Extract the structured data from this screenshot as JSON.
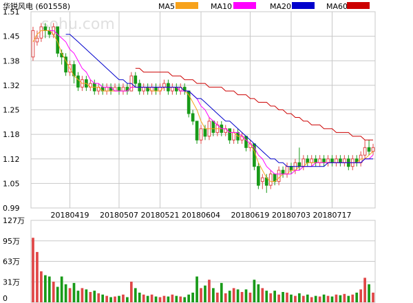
{
  "chart_data": {
    "type": "candlestick",
    "title": "华锐风电 (601558)",
    "watermark": "sohu.com",
    "legend": [
      {
        "name": "MA5",
        "color": "#f7a21b"
      },
      {
        "name": "MA10",
        "color": "#ff00ff"
      },
      {
        "name": "MA20",
        "color": "#0000cc"
      },
      {
        "name": "MA60",
        "color": "#cc0000"
      }
    ],
    "colors": {
      "up": "#e04646",
      "down": "#189a18",
      "grid": "#c8c8c8"
    },
    "price_axis": {
      "ticks": [
        "1.51",
        "1.45",
        "1.38",
        "1.32",
        "1.25",
        "1.18",
        "1.12",
        "1.05",
        "0.99"
      ],
      "ylim": [
        0.99,
        1.51
      ]
    },
    "volume_axis": {
      "ticks": [
        "127万",
        "95万",
        "63万",
        "31万",
        "0"
      ],
      "ylim": [
        0,
        127
      ]
    },
    "date_labels": [
      "20180419",
      "20180507",
      "20180521",
      "20180604",
      "20180619",
      "20180703",
      "20180717"
    ],
    "candles": [
      [
        1.39,
        1.46,
        1.47,
        1.38
      ],
      [
        1.43,
        1.44,
        1.46,
        1.42
      ],
      [
        1.44,
        1.47,
        1.48,
        1.43
      ],
      [
        1.47,
        1.46,
        1.48,
        1.44
      ],
      [
        1.46,
        1.45,
        1.47,
        1.44
      ],
      [
        1.45,
        1.47,
        1.48,
        1.44
      ],
      [
        1.47,
        1.4,
        1.47,
        1.39
      ],
      [
        1.4,
        1.39,
        1.41,
        1.37
      ],
      [
        1.39,
        1.35,
        1.4,
        1.34
      ],
      [
        1.35,
        1.37,
        1.38,
        1.34
      ],
      [
        1.37,
        1.34,
        1.38,
        1.32
      ],
      [
        1.34,
        1.31,
        1.35,
        1.3
      ],
      [
        1.31,
        1.33,
        1.34,
        1.3
      ],
      [
        1.33,
        1.31,
        1.34,
        1.3
      ],
      [
        1.31,
        1.32,
        1.33,
        1.3
      ],
      [
        1.32,
        1.3,
        1.33,
        1.29
      ],
      [
        1.3,
        1.31,
        1.32,
        1.29
      ],
      [
        1.31,
        1.3,
        1.32,
        1.29
      ],
      [
        1.3,
        1.31,
        1.32,
        1.29
      ],
      [
        1.31,
        1.3,
        1.32,
        1.29
      ],
      [
        1.3,
        1.31,
        1.32,
        1.3
      ],
      [
        1.31,
        1.3,
        1.32,
        1.29
      ],
      [
        1.3,
        1.31,
        1.32,
        1.29
      ],
      [
        1.31,
        1.3,
        1.32,
        1.29
      ],
      [
        1.3,
        1.34,
        1.35,
        1.3
      ],
      [
        1.34,
        1.32,
        1.35,
        1.31
      ],
      [
        1.32,
        1.3,
        1.33,
        1.29
      ],
      [
        1.3,
        1.31,
        1.32,
        1.29
      ],
      [
        1.31,
        1.3,
        1.32,
        1.29
      ],
      [
        1.3,
        1.31,
        1.32,
        1.29
      ],
      [
        1.31,
        1.3,
        1.32,
        1.29
      ],
      [
        1.3,
        1.31,
        1.32,
        1.29
      ],
      [
        1.31,
        1.32,
        1.33,
        1.3
      ],
      [
        1.32,
        1.3,
        1.33,
        1.29
      ],
      [
        1.3,
        1.31,
        1.32,
        1.29
      ],
      [
        1.31,
        1.3,
        1.32,
        1.29
      ],
      [
        1.3,
        1.31,
        1.32,
        1.29
      ],
      [
        1.31,
        1.3,
        1.32,
        1.29
      ],
      [
        1.3,
        1.24,
        1.3,
        1.23
      ],
      [
        1.24,
        1.22,
        1.25,
        1.21
      ],
      [
        1.22,
        1.17,
        1.22,
        1.16
      ],
      [
        1.17,
        1.2,
        1.21,
        1.16
      ],
      [
        1.2,
        1.18,
        1.21,
        1.17
      ],
      [
        1.18,
        1.22,
        1.23,
        1.17
      ],
      [
        1.22,
        1.19,
        1.22,
        1.18
      ],
      [
        1.19,
        1.21,
        1.22,
        1.18
      ],
      [
        1.21,
        1.19,
        1.22,
        1.18
      ],
      [
        1.19,
        1.2,
        1.21,
        1.18
      ],
      [
        1.2,
        1.17,
        1.2,
        1.16
      ],
      [
        1.17,
        1.19,
        1.2,
        1.16
      ],
      [
        1.19,
        1.17,
        1.2,
        1.16
      ],
      [
        1.17,
        1.18,
        1.19,
        1.16
      ],
      [
        1.18,
        1.15,
        1.18,
        1.14
      ],
      [
        1.15,
        1.16,
        1.17,
        1.14
      ],
      [
        1.16,
        1.1,
        1.16,
        1.09
      ],
      [
        1.1,
        1.05,
        1.11,
        1.04
      ],
      [
        1.06,
        1.07,
        1.08,
        1.04
      ],
      [
        1.07,
        1.05,
        1.08,
        1.03
      ],
      [
        1.05,
        1.08,
        1.09,
        1.04
      ],
      [
        1.08,
        1.06,
        1.08,
        1.05
      ],
      [
        1.06,
        1.09,
        1.1,
        1.05
      ],
      [
        1.09,
        1.08,
        1.1,
        1.07
      ],
      [
        1.08,
        1.1,
        1.11,
        1.07
      ],
      [
        1.1,
        1.09,
        1.11,
        1.08
      ],
      [
        1.09,
        1.11,
        1.12,
        1.08
      ],
      [
        1.11,
        1.1,
        1.15,
        1.09
      ],
      [
        1.1,
        1.12,
        1.13,
        1.09
      ],
      [
        1.12,
        1.11,
        1.13,
        1.1
      ],
      [
        1.11,
        1.12,
        1.13,
        1.1
      ],
      [
        1.12,
        1.11,
        1.13,
        1.1
      ],
      [
        1.11,
        1.12,
        1.13,
        1.1
      ],
      [
        1.12,
        1.11,
        1.13,
        1.1
      ],
      [
        1.11,
        1.12,
        1.13,
        1.1
      ],
      [
        1.12,
        1.11,
        1.13,
        1.1
      ],
      [
        1.11,
        1.12,
        1.13,
        1.1
      ],
      [
        1.12,
        1.11,
        1.13,
        1.1
      ],
      [
        1.11,
        1.12,
        1.13,
        1.1
      ],
      [
        1.12,
        1.1,
        1.13,
        1.09
      ],
      [
        1.1,
        1.12,
        1.13,
        1.09
      ],
      [
        1.12,
        1.11,
        1.13,
        1.1
      ],
      [
        1.11,
        1.13,
        1.14,
        1.1
      ],
      [
        1.13,
        1.15,
        1.17,
        1.12
      ],
      [
        1.15,
        1.14,
        1.17,
        1.13
      ],
      [
        1.14,
        1.15,
        1.16,
        1.13
      ]
    ],
    "volumes": [
      100,
      78,
      48,
      42,
      40,
      32,
      24,
      40,
      28,
      22,
      30,
      18,
      22,
      20,
      16,
      18,
      14,
      12,
      10,
      8,
      9,
      10,
      12,
      8,
      32,
      22,
      15,
      12,
      10,
      12,
      9,
      8,
      10,
      9,
      12,
      10,
      9,
      8,
      12,
      15,
      40,
      22,
      26,
      35,
      22,
      15,
      30,
      14,
      18,
      22,
      20,
      16,
      20,
      15,
      35,
      28,
      22,
      18,
      14,
      18,
      12,
      16,
      15,
      12,
      10,
      14,
      10,
      12,
      8,
      10,
      9,
      12,
      10,
      9,
      12,
      11,
      13,
      10,
      12,
      15,
      20,
      38,
      28,
      15
    ],
    "ma5": [
      1.43,
      1.45,
      1.46,
      1.46,
      1.46,
      1.45,
      1.43,
      1.4,
      1.38,
      1.36,
      1.34,
      1.33,
      1.32,
      1.32,
      1.31,
      1.31,
      1.31,
      1.3,
      1.3,
      1.3,
      1.3,
      1.3,
      1.3,
      1.3,
      1.31,
      1.31,
      1.31,
      1.31,
      1.31,
      1.3,
      1.3,
      1.3,
      1.31,
      1.31,
      1.31,
      1.31,
      1.3,
      1.3,
      1.29,
      1.27,
      1.25,
      1.22,
      1.2,
      1.2,
      1.2,
      1.2,
      1.2,
      1.2,
      1.19,
      1.19,
      1.18,
      1.18,
      1.17,
      1.16,
      1.14,
      1.11,
      1.09,
      1.07,
      1.06,
      1.06,
      1.07,
      1.08,
      1.08,
      1.09,
      1.09,
      1.1,
      1.1,
      1.11,
      1.11,
      1.11,
      1.11,
      1.11,
      1.11,
      1.11,
      1.11,
      1.11,
      1.11,
      1.11,
      1.11,
      1.11,
      1.12,
      1.12,
      1.13,
      1.14
    ],
    "ma10": [
      null,
      null,
      null,
      null,
      1.46,
      1.46,
      1.45,
      1.44,
      1.43,
      1.41,
      1.4,
      1.38,
      1.36,
      1.35,
      1.33,
      1.32,
      1.32,
      1.31,
      1.31,
      1.31,
      1.3,
      1.3,
      1.3,
      1.3,
      1.31,
      1.31,
      1.31,
      1.31,
      1.31,
      1.31,
      1.31,
      1.31,
      1.31,
      1.31,
      1.31,
      1.31,
      1.3,
      1.3,
      1.3,
      1.29,
      1.28,
      1.26,
      1.25,
      1.23,
      1.22,
      1.21,
      1.2,
      1.2,
      1.19,
      1.19,
      1.19,
      1.18,
      1.17,
      1.16,
      1.15,
      1.13,
      1.12,
      1.1,
      1.09,
      1.08,
      1.08,
      1.08,
      1.08,
      1.08,
      1.09,
      1.09,
      1.1,
      1.1,
      1.1,
      1.11,
      1.11,
      1.11,
      1.11,
      1.11,
      1.11,
      1.11,
      1.11,
      1.11,
      1.11,
      1.11,
      1.11,
      1.12,
      1.12,
      1.13
    ],
    "ma20": [
      null,
      null,
      null,
      null,
      null,
      null,
      null,
      null,
      1.45,
      1.45,
      1.44,
      1.43,
      1.42,
      1.41,
      1.4,
      1.39,
      1.38,
      1.37,
      1.36,
      1.35,
      1.34,
      1.33,
      1.33,
      1.32,
      1.32,
      1.31,
      1.31,
      1.31,
      1.31,
      1.31,
      1.31,
      1.31,
      1.31,
      1.31,
      1.31,
      1.31,
      1.31,
      1.3,
      1.3,
      1.29,
      1.28,
      1.28,
      1.27,
      1.26,
      1.25,
      1.24,
      1.23,
      1.22,
      1.22,
      1.21,
      1.2,
      1.19,
      1.18,
      1.17,
      1.16,
      1.15,
      1.14,
      1.13,
      1.12,
      1.12,
      1.11,
      1.11,
      1.1,
      1.1,
      1.1,
      1.1,
      1.1,
      1.1,
      1.1,
      1.1,
      1.1,
      1.1,
      1.11,
      1.11,
      1.11,
      1.11,
      1.11,
      1.11,
      1.11,
      1.11,
      1.11,
      1.12,
      1.12,
      1.12
    ],
    "ma60": [
      null,
      null,
      null,
      null,
      null,
      null,
      null,
      null,
      null,
      null,
      null,
      null,
      null,
      null,
      null,
      null,
      null,
      null,
      null,
      null,
      null,
      null,
      null,
      null,
      null,
      1.36,
      1.36,
      1.35,
      1.35,
      1.35,
      1.35,
      1.35,
      1.35,
      1.35,
      1.34,
      1.34,
      1.34,
      1.33,
      1.33,
      1.33,
      1.32,
      1.32,
      1.32,
      1.31,
      1.31,
      1.31,
      1.31,
      1.3,
      1.3,
      1.3,
      1.29,
      1.29,
      1.29,
      1.28,
      1.28,
      1.27,
      1.27,
      1.27,
      1.26,
      1.26,
      1.25,
      1.25,
      1.24,
      1.24,
      1.23,
      1.23,
      1.22,
      1.22,
      1.21,
      1.21,
      1.21,
      1.2,
      1.2,
      1.2,
      1.19,
      1.19,
      1.19,
      1.19,
      1.18,
      1.18,
      1.18,
      1.17,
      1.17,
      1.17
    ]
  }
}
